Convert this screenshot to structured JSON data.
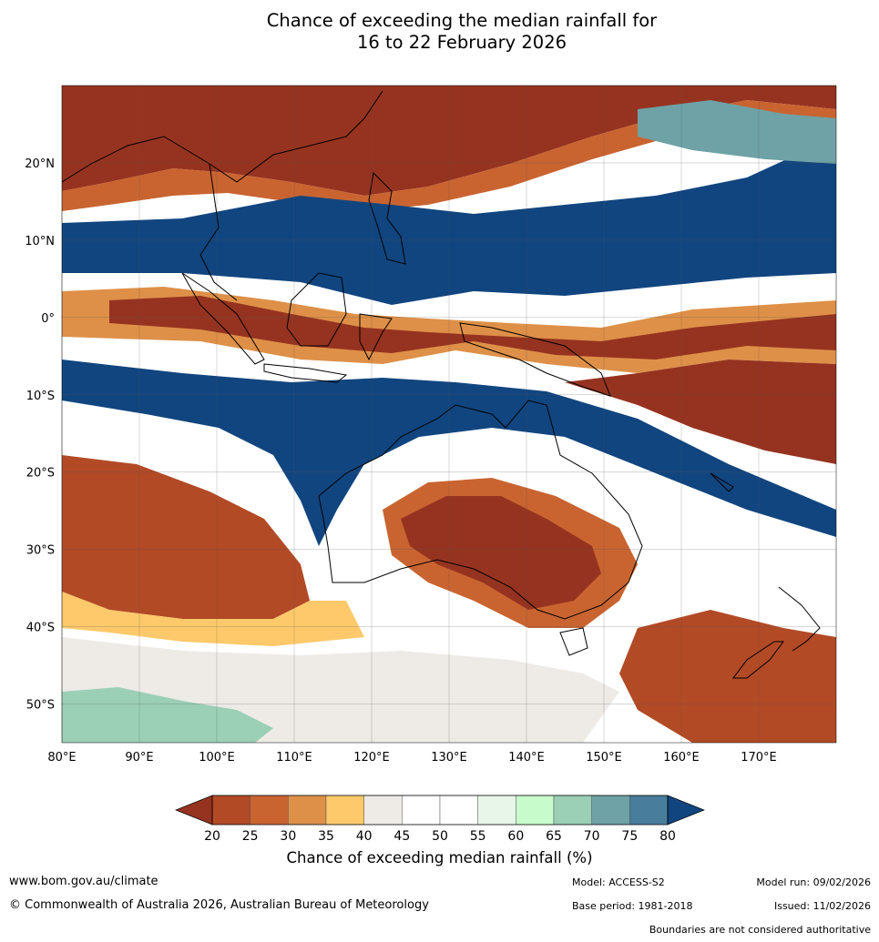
{
  "title": {
    "line1": "Chance of exceeding the median rainfall for",
    "line2": "16 to 22 February 2026"
  },
  "map": {
    "lon_range": [
      80,
      180
    ],
    "lat_range": [
      -55,
      30
    ],
    "lon_ticks": [
      "80°E",
      "90°E",
      "100°E",
      "110°E",
      "120°E",
      "130°E",
      "140°E",
      "150°E",
      "160°E",
      "170°E"
    ],
    "lat_ticks": [
      "20°N",
      "10°N",
      "0°",
      "10°S",
      "20°S",
      "30°S",
      "40°S",
      "50°S"
    ],
    "gridlines": true
  },
  "colorbar": {
    "ticks": [
      "20",
      "25",
      "30",
      "35",
      "40",
      "45",
      "50",
      "55",
      "60",
      "65",
      "70",
      "75",
      "80"
    ],
    "colors": [
      "#963320",
      "#b24a26",
      "#c96430",
      "#de9048",
      "#fdc96a",
      "#eeebe7",
      "#ffffff",
      "#ffffff",
      "#e8f6ea",
      "#c7fbcb",
      "#9bcfb6",
      "#6ea2a6",
      "#487d9b",
      "#11457f"
    ],
    "low_color": "#963320",
    "high_color": "#11457f",
    "label": "Chance of exceeding median rainfall (%)"
  },
  "footer": {
    "website": "www.bom.gov.au/climate",
    "copyright": "© Commonwealth of Australia 2026, Australian Bureau of Meteorology",
    "model": "Model: ACCESS-S2",
    "base_period": "Base period: 1981-2018",
    "model_run": "Model run: 09/02/2026",
    "issued": "Issued: 11/02/2026",
    "disclaimer": "Boundaries are not considered authoritative"
  }
}
